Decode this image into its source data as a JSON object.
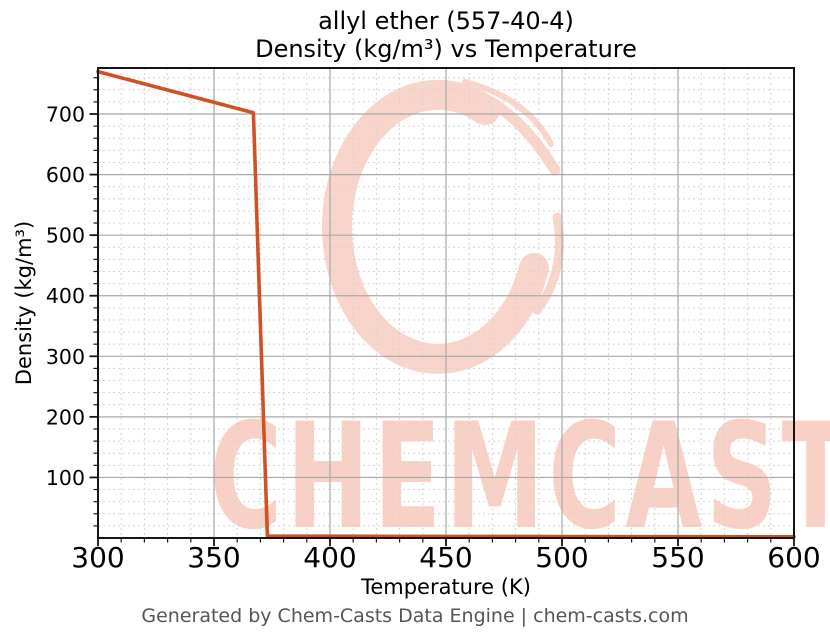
{
  "title": {
    "line1": "allyl ether (557-40-4)",
    "line2": "Density (kg/m³) vs Temperature"
  },
  "footer": {
    "credit": "Generated by Chem-Casts Data Engine | chem-casts.com"
  },
  "watermark": {
    "text": "CHEMCASTS",
    "logo": "chemcasts-brush-c-logo",
    "color": "#f8d0c5"
  },
  "chart_data": {
    "type": "line",
    "title": "allyl ether (557-40-4) Density (kg/m³) vs Temperature",
    "xlabel": "Temperature (K)",
    "ylabel": "Density (kg/m³)",
    "xlim": [
      300,
      600
    ],
    "ylim": [
      0,
      776
    ],
    "xticks": [
      300,
      350,
      400,
      450,
      500,
      550,
      600
    ],
    "yticks": [
      100,
      200,
      300,
      400,
      500,
      600,
      700
    ],
    "x_minor_step": 10,
    "y_minor_step": 20,
    "grid": "major solid gray, minor dashed light gray",
    "legend": "none",
    "line_color": "#d15124",
    "series": [
      {
        "name": "Density (kg/m³)",
        "x": [
          300,
          367,
          373,
          400,
          450,
          500,
          550,
          600
        ],
        "y": [
          770,
          702,
          3.2,
          3.0,
          2.7,
          2.4,
          2.2,
          2.0
        ]
      }
    ]
  }
}
